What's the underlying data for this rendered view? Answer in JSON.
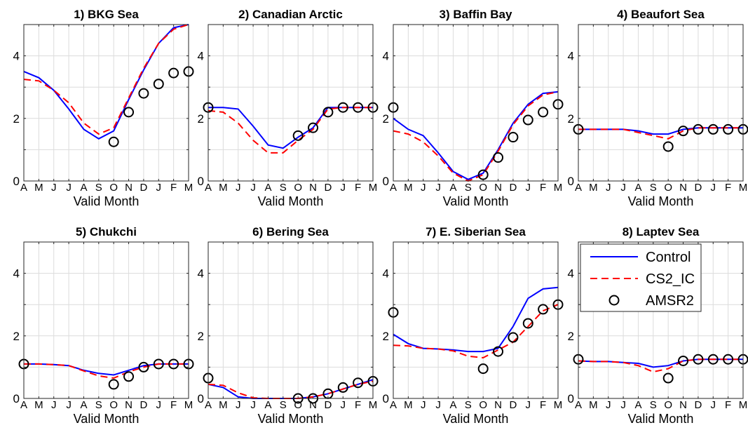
{
  "chart_data": {
    "type": "line",
    "xlabel": "Valid Month",
    "ylabel": "",
    "ylim": [
      0,
      5
    ],
    "yticks": [
      0,
      2,
      4
    ],
    "categories": [
      "A",
      "M",
      "J",
      "J",
      "A",
      "S",
      "O",
      "N",
      "D",
      "J",
      "F",
      "M"
    ],
    "grid": true,
    "legend": {
      "panel_index": 7,
      "placement": "top",
      "entries": [
        {
          "name": "Control",
          "color": "#0000ff",
          "style": "solid"
        },
        {
          "name": "CS2_IC",
          "color": "#ff0000",
          "style": "dashed"
        },
        {
          "name": "AMSR2",
          "color": "#000000",
          "style": "circle"
        }
      ]
    },
    "panels": [
      {
        "title": "1) BKG Sea",
        "control": [
          3.5,
          3.3,
          2.9,
          2.3,
          1.65,
          1.35,
          1.6,
          2.6,
          3.55,
          4.4,
          4.9,
          5.0
        ],
        "cs2_ic": [
          3.25,
          3.2,
          2.9,
          2.5,
          1.85,
          1.5,
          1.7,
          2.65,
          3.6,
          4.4,
          4.85,
          5.0
        ],
        "amsr2": [
          null,
          null,
          null,
          null,
          null,
          null,
          1.25,
          2.2,
          2.8,
          3.1,
          3.45,
          3.5
        ]
      },
      {
        "title": "2) Canadian Arctic",
        "control": [
          2.35,
          2.35,
          2.3,
          1.75,
          1.15,
          1.05,
          1.4,
          1.7,
          2.35,
          2.35,
          2.35,
          2.35
        ],
        "cs2_ic": [
          2.25,
          2.2,
          1.85,
          1.3,
          0.9,
          0.9,
          1.3,
          1.65,
          2.3,
          2.35,
          2.35,
          2.35
        ],
        "amsr2": [
          2.35,
          null,
          null,
          null,
          null,
          null,
          1.45,
          1.7,
          2.2,
          2.35,
          2.35,
          2.35
        ]
      },
      {
        "title": "3) Baffin Bay",
        "control": [
          2.0,
          1.65,
          1.45,
          0.9,
          0.3,
          0.05,
          0.25,
          1.0,
          1.85,
          2.45,
          2.8,
          2.85
        ],
        "cs2_ic": [
          1.6,
          1.5,
          1.25,
          0.8,
          0.25,
          0.0,
          0.2,
          0.95,
          1.8,
          2.4,
          2.75,
          2.85
        ],
        "amsr2": [
          2.35,
          null,
          null,
          null,
          null,
          null,
          0.2,
          0.75,
          1.4,
          1.95,
          2.2,
          2.45
        ]
      },
      {
        "title": "4) Beaufort Sea",
        "control": [
          1.65,
          1.65,
          1.65,
          1.65,
          1.6,
          1.5,
          1.5,
          1.65,
          1.7,
          1.7,
          1.7,
          1.7
        ],
        "cs2_ic": [
          1.65,
          1.65,
          1.65,
          1.65,
          1.55,
          1.45,
          1.35,
          1.6,
          1.7,
          1.7,
          1.7,
          1.7
        ],
        "amsr2": [
          1.65,
          null,
          null,
          null,
          null,
          null,
          1.1,
          1.6,
          1.65,
          1.65,
          1.65,
          1.65
        ]
      },
      {
        "title": "5) Chukchi",
        "control": [
          1.1,
          1.1,
          1.08,
          1.05,
          0.9,
          0.8,
          0.75,
          0.9,
          1.05,
          1.1,
          1.1,
          1.1
        ],
        "cs2_ic": [
          1.1,
          1.1,
          1.08,
          1.05,
          0.88,
          0.72,
          0.65,
          0.85,
          1.0,
          1.1,
          1.1,
          1.1
        ],
        "amsr2": [
          1.1,
          null,
          null,
          null,
          null,
          null,
          0.45,
          0.7,
          1.0,
          1.1,
          1.1,
          1.1
        ]
      },
      {
        "title": "6) Bering Sea",
        "control": [
          0.45,
          0.35,
          0.05,
          0.0,
          0.0,
          0.0,
          0.0,
          0.05,
          0.15,
          0.3,
          0.45,
          0.6
        ],
        "cs2_ic": [
          0.45,
          0.42,
          0.18,
          0.02,
          0.0,
          0.0,
          0.0,
          0.05,
          0.15,
          0.3,
          0.45,
          0.55
        ],
        "amsr2": [
          0.65,
          null,
          null,
          null,
          null,
          null,
          0.0,
          0.0,
          0.15,
          0.35,
          0.5,
          0.55
        ]
      },
      {
        "title": "7) E. Siberian Sea",
        "control": [
          2.05,
          1.75,
          1.6,
          1.58,
          1.55,
          1.5,
          1.5,
          1.6,
          2.3,
          3.2,
          3.5,
          3.55
        ],
        "cs2_ic": [
          1.7,
          1.68,
          1.6,
          1.58,
          1.52,
          1.35,
          1.3,
          1.55,
          1.8,
          2.3,
          2.8,
          3.0
        ],
        "amsr2": [
          2.75,
          null,
          null,
          null,
          null,
          null,
          0.95,
          1.5,
          1.95,
          2.4,
          2.85,
          3.0
        ]
      },
      {
        "title": "8) Laptev Sea",
        "control": [
          1.2,
          1.18,
          1.18,
          1.15,
          1.12,
          1.0,
          1.05,
          1.2,
          1.25,
          1.25,
          1.25,
          1.25
        ],
        "cs2_ic": [
          1.2,
          1.18,
          1.18,
          1.15,
          1.05,
          0.85,
          0.95,
          1.2,
          1.25,
          1.25,
          1.25,
          1.25
        ],
        "amsr2": [
          1.25,
          null,
          null,
          null,
          null,
          null,
          0.65,
          1.2,
          1.25,
          1.25,
          1.25,
          1.25
        ]
      }
    ]
  }
}
